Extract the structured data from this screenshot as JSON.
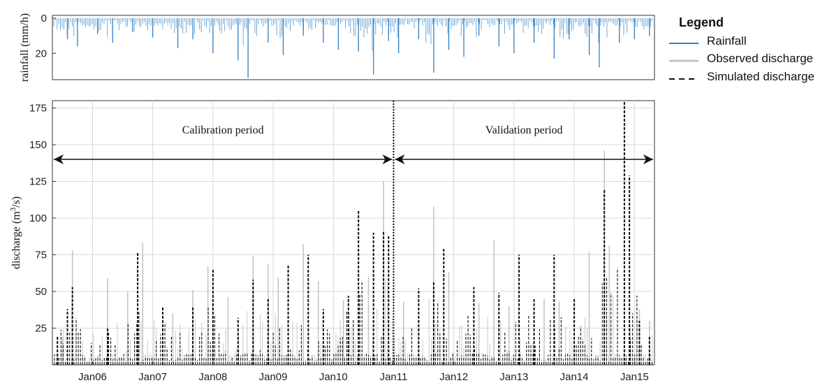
{
  "chart_data": [
    {
      "type": "bar",
      "panel": "rainfall",
      "ylabel": "rainfall (mm/h)",
      "ylim": [
        0,
        35
      ],
      "y_inverted": true,
      "yticks": [
        "0",
        "20"
      ],
      "yticks_values": [
        0,
        20
      ],
      "color": "#2e7fc2",
      "series": [
        {
          "name": "Rainfall",
          "x": [
            "2005-08",
            "2005-10",
            "2006-02",
            "2006-05",
            "2006-09",
            "2007-01",
            "2007-06",
            "2007-09",
            "2008-01",
            "2008-06",
            "2008-08",
            "2008-12",
            "2009-03",
            "2009-07",
            "2009-11",
            "2010-02",
            "2010-06",
            "2010-09",
            "2010-12",
            "2011-02",
            "2011-06",
            "2011-09",
            "2011-12",
            "2012-03",
            "2012-06",
            "2012-10",
            "2013-01",
            "2013-05",
            "2013-09",
            "2013-12",
            "2014-04",
            "2014-06",
            "2014-10",
            "2015-01",
            "2015-04"
          ],
          "values": [
            12,
            16,
            9,
            14,
            8,
            11,
            17,
            12,
            20,
            24,
            34,
            14,
            21,
            10,
            14,
            18,
            19,
            32,
            13,
            20,
            12,
            31,
            18,
            22,
            10,
            16,
            20,
            14,
            23,
            12,
            21,
            28,
            14,
            12,
            10
          ]
        }
      ]
    },
    {
      "type": "line",
      "panel": "discharge",
      "ylabel": "discharge (m³/s)",
      "ylim": [
        0,
        180
      ],
      "yticks": [
        "25",
        "50",
        "75",
        "100",
        "125",
        "150",
        "175"
      ],
      "yticks_values": [
        25,
        50,
        75,
        100,
        125,
        150,
        175
      ],
      "xticks": [
        "Jan06",
        "Jan07",
        "Jan08",
        "Jan09",
        "Jan10",
        "Jan11",
        "Jan12",
        "Jan13",
        "Jan14",
        "Jan15"
      ],
      "xlim": [
        "2005-05",
        "2015-05"
      ],
      "grid": true,
      "divider_x": "2011-01",
      "annotations": [
        {
          "text": "Calibration period",
          "from": "2005-05",
          "to": "2011-01",
          "y": 140
        },
        {
          "text": "Validation period",
          "from": "2011-01",
          "to": "2015-05",
          "y": 140
        }
      ],
      "series": [
        {
          "name": "Observed discharge",
          "color": "#c4c4c4",
          "style": "solid",
          "peaks": [
            {
              "x": "2005-07",
              "y": 19
            },
            {
              "x": "2005-09",
              "y": 78
            },
            {
              "x": "2006-04",
              "y": 59
            },
            {
              "x": "2006-08",
              "y": 50
            },
            {
              "x": "2006-11",
              "y": 83
            },
            {
              "x": "2007-05",
              "y": 35
            },
            {
              "x": "2007-09",
              "y": 51
            },
            {
              "x": "2007-12",
              "y": 67
            },
            {
              "x": "2008-04",
              "y": 46
            },
            {
              "x": "2008-09",
              "y": 74
            },
            {
              "x": "2008-12",
              "y": 69
            },
            {
              "x": "2009-02",
              "y": 60
            },
            {
              "x": "2009-07",
              "y": 82
            },
            {
              "x": "2009-10",
              "y": 57
            },
            {
              "x": "2010-03",
              "y": 44
            },
            {
              "x": "2010-08",
              "y": 60
            },
            {
              "x": "2010-11",
              "y": 125
            },
            {
              "x": "2011-03",
              "y": 43
            },
            {
              "x": "2011-09",
              "y": 108
            },
            {
              "x": "2011-12",
              "y": 63
            },
            {
              "x": "2012-06",
              "y": 42
            },
            {
              "x": "2012-09",
              "y": 85
            },
            {
              "x": "2012-12",
              "y": 40
            },
            {
              "x": "2013-07",
              "y": 45
            },
            {
              "x": "2013-10",
              "y": 43
            },
            {
              "x": "2014-04",
              "y": 77
            },
            {
              "x": "2014-07",
              "y": 146
            },
            {
              "x": "2014-08",
              "y": 81
            },
            {
              "x": "2015-02",
              "y": 38
            },
            {
              "x": "2015-04",
              "y": 30
            }
          ]
        },
        {
          "name": "Simulated discharge",
          "color": "#111111",
          "style": "dashed",
          "peaks": [
            {
              "x": "2005-06",
              "y": 20
            },
            {
              "x": "2005-08",
              "y": 38
            },
            {
              "x": "2005-09",
              "y": 53
            },
            {
              "x": "2006-04",
              "y": 25
            },
            {
              "x": "2006-10",
              "y": 77
            },
            {
              "x": "2007-03",
              "y": 40
            },
            {
              "x": "2007-09",
              "y": 40
            },
            {
              "x": "2008-01",
              "y": 65
            },
            {
              "x": "2008-06",
              "y": 32
            },
            {
              "x": "2008-09",
              "y": 58
            },
            {
              "x": "2008-12",
              "y": 45
            },
            {
              "x": "2009-04",
              "y": 68
            },
            {
              "x": "2009-08",
              "y": 75
            },
            {
              "x": "2009-11",
              "y": 38
            },
            {
              "x": "2010-04",
              "y": 47
            },
            {
              "x": "2010-06",
              "y": 105
            },
            {
              "x": "2010-09",
              "y": 90
            },
            {
              "x": "2010-11",
              "y": 91
            },
            {
              "x": "2010-12",
              "y": 88
            },
            {
              "x": "2011-06",
              "y": 52
            },
            {
              "x": "2011-09",
              "y": 57
            },
            {
              "x": "2011-11",
              "y": 79
            },
            {
              "x": "2012-05",
              "y": 53
            },
            {
              "x": "2012-10",
              "y": 49
            },
            {
              "x": "2013-02",
              "y": 75
            },
            {
              "x": "2013-05",
              "y": 45
            },
            {
              "x": "2013-09",
              "y": 75
            },
            {
              "x": "2014-01",
              "y": 45
            },
            {
              "x": "2014-07",
              "y": 120
            },
            {
              "x": "2014-11",
              "y": 180
            },
            {
              "x": "2014-12",
              "y": 129
            },
            {
              "x": "2015-02",
              "y": 30
            },
            {
              "x": "2015-04",
              "y": 20
            }
          ]
        }
      ]
    }
  ],
  "legend": {
    "title": "Legend",
    "items": [
      {
        "label": "Rainfall",
        "color": "#2e7fc2",
        "style": "solid"
      },
      {
        "label": "Observed discharge",
        "color": "#c4c4c4",
        "style": "solid"
      },
      {
        "label": "Simulated discharge",
        "color": "#111111",
        "style": "dashed"
      }
    ]
  }
}
